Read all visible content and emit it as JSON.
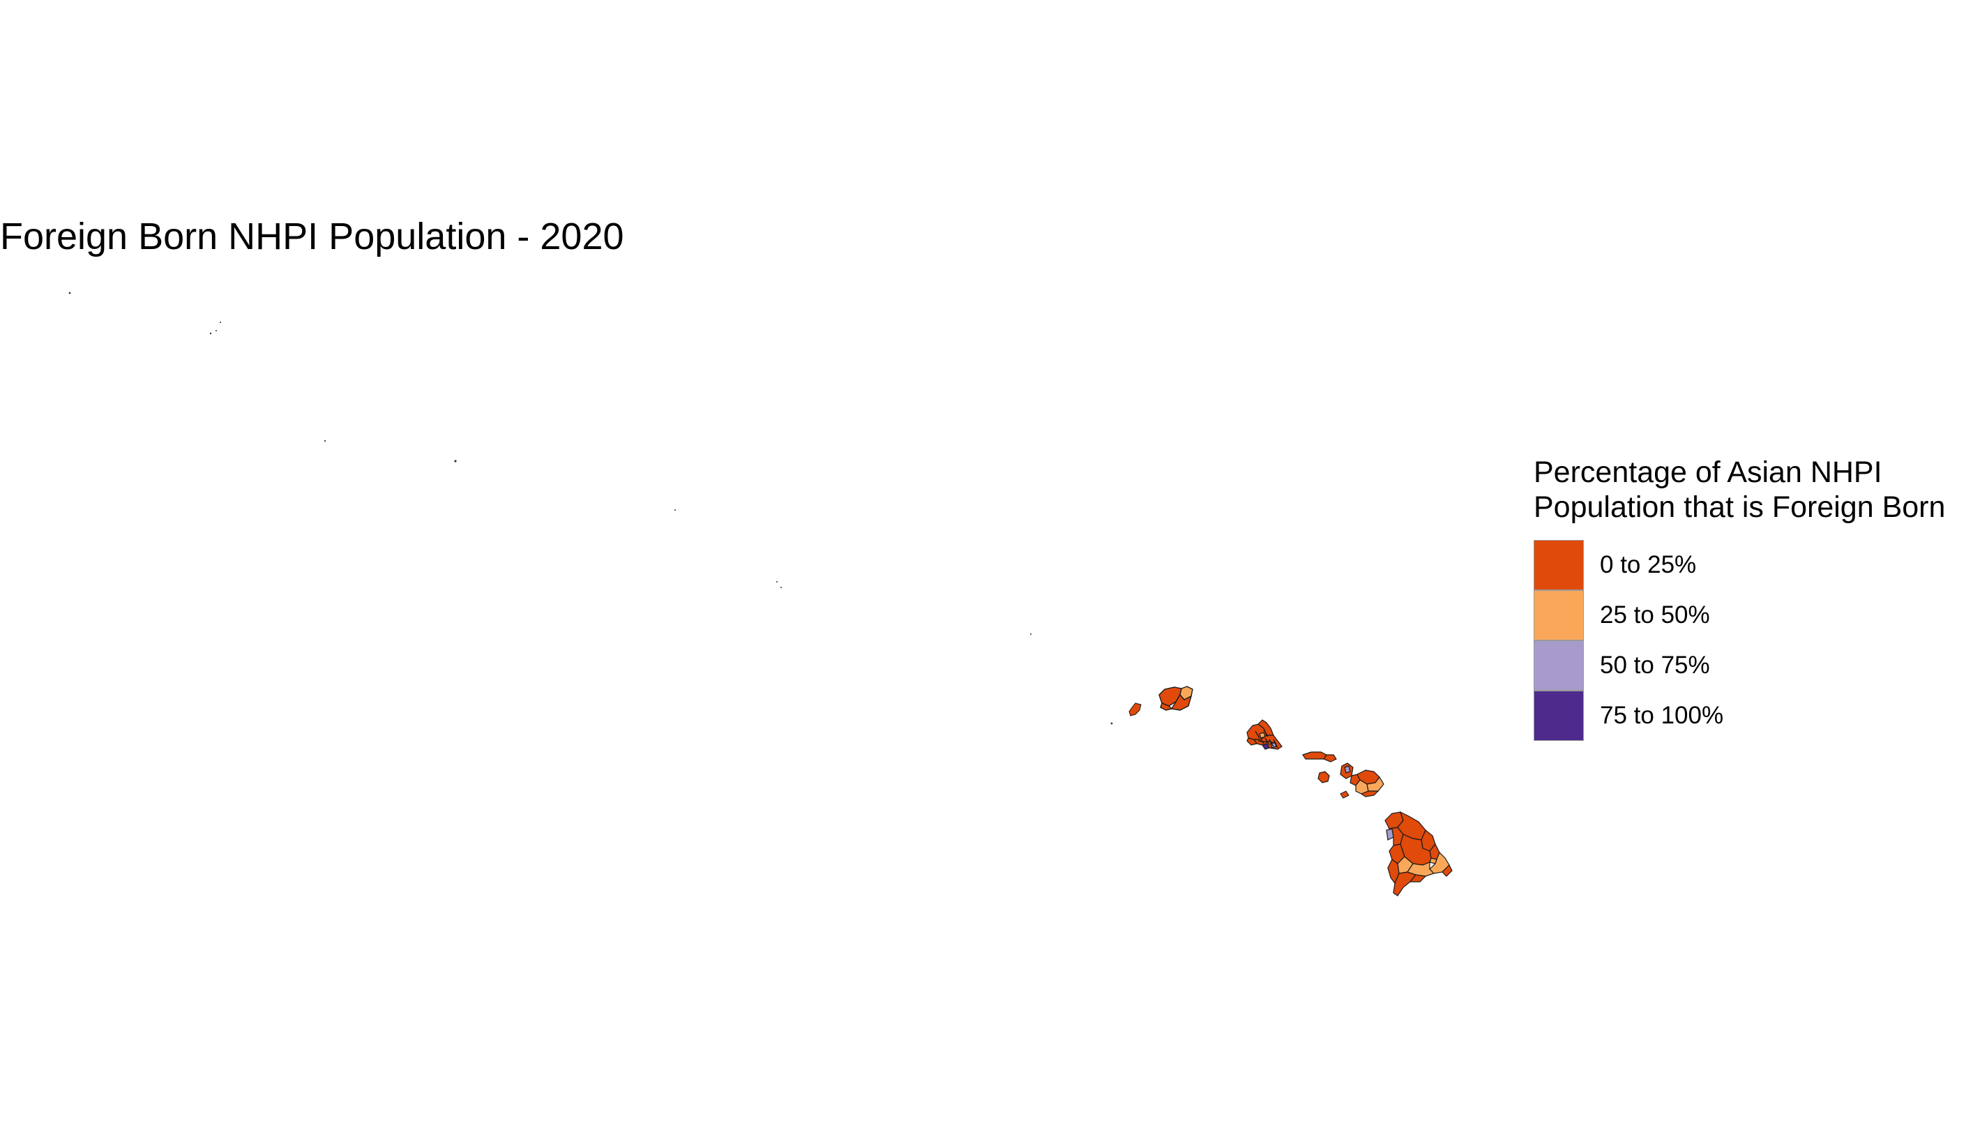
{
  "map": {
    "title": "Foreign Born NHPI Population - 2020",
    "region": "Hawaii"
  },
  "legend": {
    "title_line1": "Percentage of Asian NHPI",
    "title_line2": "Population that is Foreign Born",
    "items": [
      {
        "label": "0 to 25%",
        "color": "#E04A0B"
      },
      {
        "label": "25 to 50%",
        "color": "#F9A85A"
      },
      {
        "label": "50 to 75%",
        "color": "#A79BCB"
      },
      {
        "label": "75 to 100%",
        "color": "#4E2A8D"
      }
    ]
  },
  "colors": {
    "bin_0_25": "#E04A0B",
    "bin_25_50": "#F9A85A",
    "bin_50_75": "#A79BCB",
    "bin_75_100": "#4E2A8D",
    "border": "#1a1a1a"
  }
}
